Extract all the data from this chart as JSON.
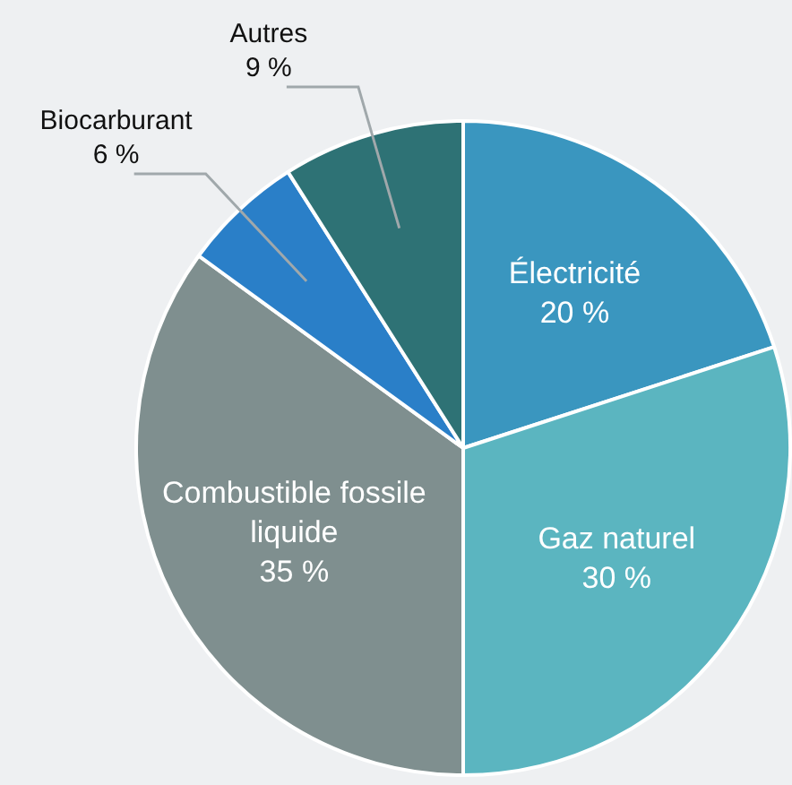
{
  "chart_data": {
    "type": "pie",
    "categories": [
      "Électricité",
      "Gaz naturel",
      "Combustible fossile liquide",
      "Biocarburant",
      "Autres"
    ],
    "values": [
      20,
      30,
      35,
      6,
      9
    ],
    "colors": [
      "#3a96bf",
      "#5bb5c0",
      "#7f8f8f",
      "#2a7fc8",
      "#2e7275"
    ],
    "value_labels": [
      "20 %",
      "30 %",
      "35 %",
      "6 %",
      "9 %"
    ],
    "legend": false
  }
}
